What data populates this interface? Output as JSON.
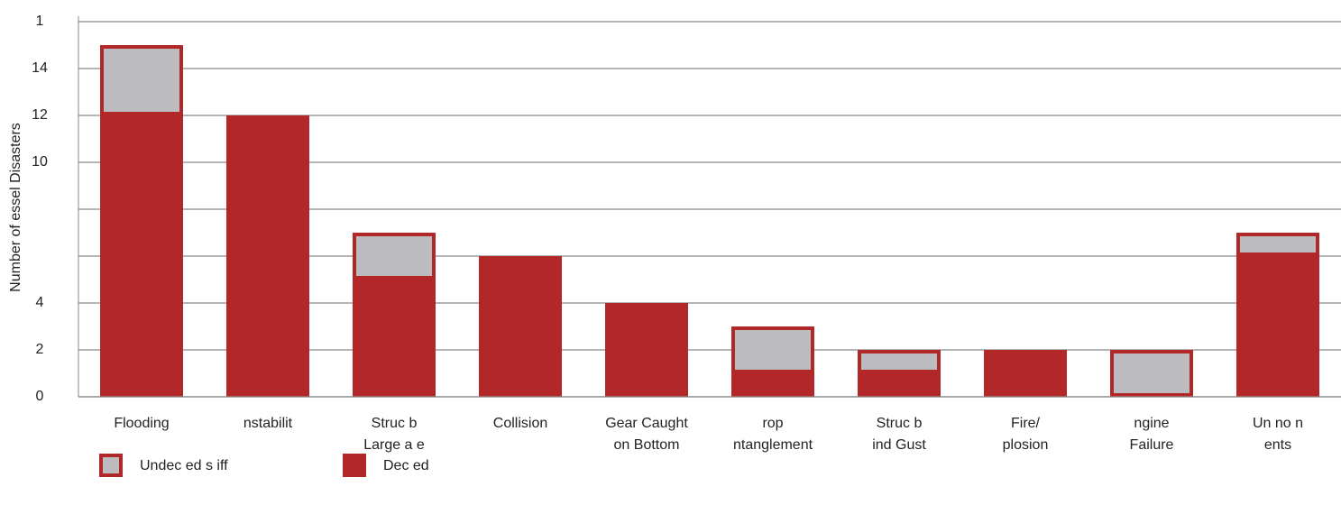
{
  "chart_data": {
    "type": "bar",
    "stacked": true,
    "y_label": "Number of  essel Disasters",
    "categories": [
      "Flooding",
      "nstabilit",
      "Struc  b\nLarge  a e",
      "Collision",
      "Gear Caught\non Bottom",
      "rop\nntanglement",
      "Struc  b\nind Gust",
      "Fire/\nplosion",
      "ngine\nFailure",
      "Un no  n\nents"
    ],
    "series": [
      {
        "name": "Dec ed",
        "color": "#b22828",
        "values": [
          12,
          12,
          5,
          6,
          4,
          1,
          1,
          2,
          0,
          6
        ]
      },
      {
        "name": "Undec ed s iff",
        "color": "#bcbcc0",
        "outline": "#b22828",
        "values": [
          3,
          0,
          2,
          0,
          0,
          2,
          1,
          0,
          2,
          1
        ]
      }
    ],
    "ylim": [
      0,
      16
    ],
    "yticks": [
      0,
      2,
      4,
      {
        "value": 6,
        "label": null
      },
      {
        "value": 8,
        "label": null
      },
      10,
      12,
      14,
      {
        "value": 16,
        "label": "1"
      }
    ],
    "grid": true
  }
}
